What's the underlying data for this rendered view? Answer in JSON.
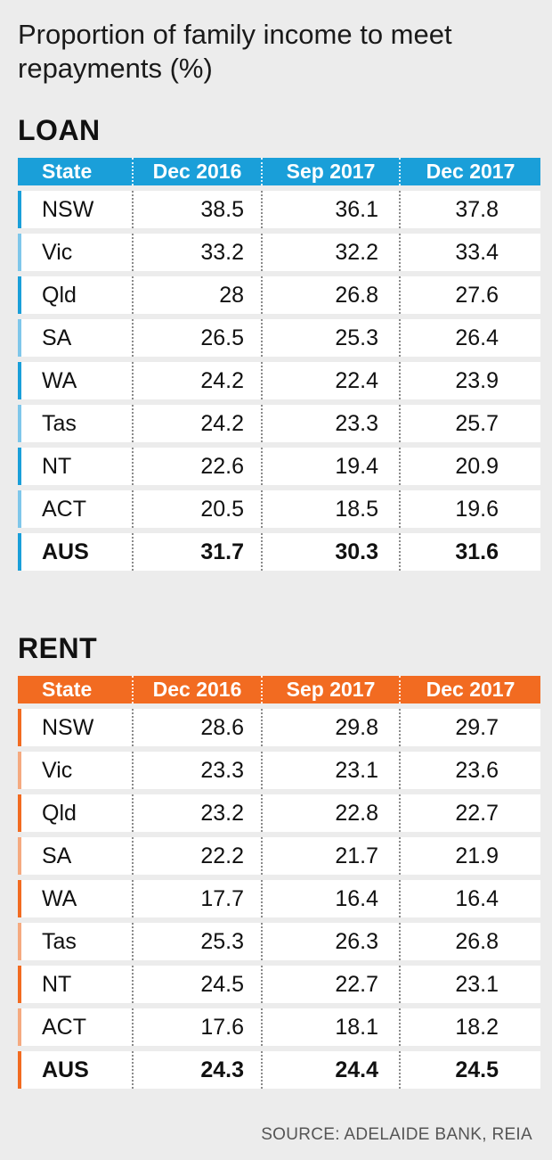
{
  "title": "Proportion  of family income to meet repayments (%)",
  "source": "SOURCE: ADELAIDE BANK, REIA",
  "colors": {
    "loan_header": "#1a9fd9",
    "loan_bar_dark": "#1a9fd9",
    "loan_bar_light": "#7fc7ea",
    "rent_header": "#f26b21",
    "rent_bar_dark": "#f26b21",
    "rent_bar_light": "#f5aa80"
  },
  "chart_data": [
    {
      "type": "table",
      "title": "LOAN",
      "columns": [
        "State",
        "Dec 2016",
        "Sep 2017",
        "Dec 2017"
      ],
      "rows": [
        [
          "NSW",
          "38.5",
          "36.1",
          "37.8"
        ],
        [
          "Vic",
          "33.2",
          "32.2",
          "33.4"
        ],
        [
          "Qld",
          "28",
          "26.8",
          "27.6"
        ],
        [
          "SA",
          "26.5",
          "25.3",
          "26.4"
        ],
        [
          "WA",
          "24.2",
          "22.4",
          "23.9"
        ],
        [
          "Tas",
          "24.2",
          "23.3",
          "25.7"
        ],
        [
          "NT",
          "22.6",
          "19.4",
          "20.9"
        ],
        [
          "ACT",
          "20.5",
          "18.5",
          "19.6"
        ],
        [
          "AUS",
          "31.7",
          "30.3",
          "31.6"
        ]
      ]
    },
    {
      "type": "table",
      "title": "RENT",
      "columns": [
        "State",
        "Dec 2016",
        "Sep 2017",
        "Dec 2017"
      ],
      "rows": [
        [
          "NSW",
          "28.6",
          "29.8",
          "29.7"
        ],
        [
          "Vic",
          "23.3",
          "23.1",
          "23.6"
        ],
        [
          "Qld",
          "23.2",
          "22.8",
          "22.7"
        ],
        [
          "SA",
          "22.2",
          "21.7",
          "21.9"
        ],
        [
          "WA",
          "17.7",
          "16.4",
          "16.4"
        ],
        [
          "Tas",
          "25.3",
          "26.3",
          "26.8"
        ],
        [
          "NT",
          "24.5",
          "22.7",
          "23.1"
        ],
        [
          "ACT",
          "17.6",
          "18.1",
          "18.2"
        ],
        [
          "AUS",
          "24.3",
          "24.4",
          "24.5"
        ]
      ]
    }
  ]
}
